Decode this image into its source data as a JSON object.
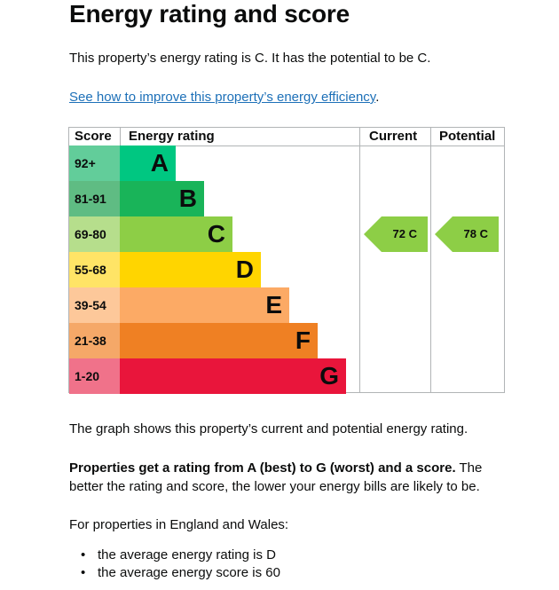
{
  "heading": "Energy rating and score",
  "intro": "This property’s energy rating is C. It has the potential to be C.",
  "link_text": "See how to improve this property’s energy efficiency",
  "link_suffix": ".",
  "table": {
    "headers": {
      "score": "Score",
      "rating": "Energy rating",
      "current": "Current",
      "potential": "Potential"
    },
    "bands": [
      {
        "score": "92+",
        "letter": "A",
        "color": "#00c781",
        "score_bg": "#62cd9a"
      },
      {
        "score": "81-91",
        "letter": "B",
        "color": "#19b459",
        "score_bg": "#5fbc83"
      },
      {
        "score": "69-80",
        "letter": "C",
        "color": "#8dce46",
        "score_bg": "#b6de8c"
      },
      {
        "score": "55-68",
        "letter": "D",
        "color": "#ffd500",
        "score_bg": "#ffe466"
      },
      {
        "score": "39-54",
        "letter": "E",
        "color": "#fcaa65",
        "score_bg": "#fdc89a"
      },
      {
        "score": "21-38",
        "letter": "F",
        "color": "#ef8023",
        "score_bg": "#f5a868"
      },
      {
        "score": "1-20",
        "letter": "G",
        "color": "#e9153b",
        "score_bg": "#f0728a"
      }
    ],
    "current": {
      "label": "72  C",
      "band_index": 2,
      "color": "#8dce46"
    },
    "potential": {
      "label": "78  C",
      "band_index": 2,
      "color": "#8dce46"
    }
  },
  "graph_text": "The graph shows this property’s current and potential energy rating.",
  "rating_info_bold": "Properties get a rating from A (best) to G (worst) and a score.",
  "rating_info_rest": " The better the rating and score, the lower your energy bills are likely to be.",
  "region_text": "For properties in England and Wales:",
  "averages": [
    "the average energy rating is D",
    "the average energy score is 60"
  ]
}
